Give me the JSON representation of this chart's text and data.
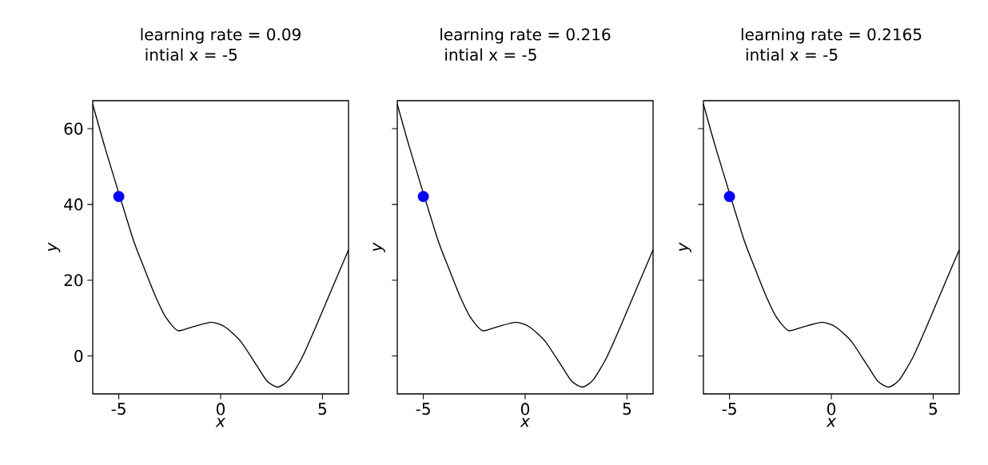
{
  "chart_data": [
    {
      "type": "line",
      "title": "learning rate = 0.09",
      "subtitle": "intial x = -5",
      "xlabel": "x",
      "ylabel": "y",
      "xlim": [
        -6.28,
        6.28
      ],
      "ylim": [
        -10,
        67.4
      ],
      "xticks": [
        -5,
        0,
        5
      ],
      "yticks": [
        0,
        20,
        40,
        60
      ],
      "series": [
        {
          "type": "line",
          "color": "#000000",
          "marker": "none",
          "x": [
            -6.28,
            -5.65,
            -5,
            -4.34,
            -3.74,
            -3.21,
            -2.69,
            -2.1,
            -1.38,
            -0.46,
            0.2,
            0.98,
            1.77,
            2.29,
            2.82,
            3.34,
            4.0,
            4.65,
            5.31,
            6.28
          ],
          "values": [
            66.5,
            54.5,
            null,
            31.5,
            23,
            15.9,
            10.2,
            6.7,
            7.7,
            8.9,
            7.7,
            3.9,
            -2.5,
            -6.7,
            -8.2,
            -6.3,
            -0.4,
            7.4,
            15.8,
            28.0
          ]
        },
        {
          "type": "scatter",
          "color": "#0000ff",
          "marker": "circle",
          "x": [
            -5
          ],
          "values": [
            42.1
          ]
        }
      ]
    },
    {
      "type": "line",
      "title": "learning rate = 0.216",
      "subtitle": "intial x = -5",
      "xlabel": "x",
      "ylabel": "y",
      "xlim": [
        -6.28,
        6.28
      ],
      "ylim": [
        -10,
        67.4
      ],
      "xticks": [
        -5,
        0,
        5
      ],
      "yticks": [
        0,
        20,
        40,
        60
      ],
      "tick_labels": "x",
      "series": [
        {
          "type": "line",
          "color": "#000000",
          "marker": "none",
          "x": [
            -6.28,
            -5.65,
            -5,
            -4.34,
            -3.74,
            -3.21,
            -2.69,
            -2.1,
            -1.38,
            -0.46,
            0.2,
            0.98,
            1.77,
            2.29,
            2.82,
            3.34,
            4.0,
            4.65,
            5.31,
            6.28
          ],
          "values": [
            66.5,
            54.5,
            null,
            31.5,
            23,
            15.9,
            10.2,
            6.7,
            7.7,
            8.9,
            7.7,
            3.9,
            -2.5,
            -6.7,
            -8.2,
            -6.3,
            -0.4,
            7.4,
            15.8,
            28.0
          ]
        },
        {
          "type": "scatter",
          "color": "#0000ff",
          "marker": "circle",
          "x": [
            -5
          ],
          "values": [
            42.1
          ]
        }
      ]
    },
    {
      "type": "line",
      "title": "learning rate = 0.2165",
      "subtitle": "intial x = -5",
      "xlabel": "x",
      "ylabel": "y",
      "xlim": [
        -6.28,
        6.28
      ],
      "ylim": [
        -10,
        67.4
      ],
      "xticks": [
        -5,
        0,
        5
      ],
      "yticks": [
        0,
        20,
        40,
        60
      ],
      "tick_labels": "x",
      "series": [
        {
          "type": "line",
          "color": "#000000",
          "marker": "none",
          "x": [
            -6.28,
            -5.65,
            -5,
            -4.34,
            -3.74,
            -3.21,
            -2.69,
            -2.1,
            -1.38,
            -0.46,
            0.2,
            0.98,
            1.77,
            2.29,
            2.82,
            3.34,
            4.0,
            4.65,
            5.31,
            6.28
          ],
          "values": [
            66.5,
            54.5,
            null,
            31.5,
            23,
            15.9,
            10.2,
            6.7,
            7.7,
            8.9,
            7.7,
            3.9,
            -2.5,
            -6.7,
            -8.2,
            -6.3,
            -0.4,
            7.4,
            15.8,
            28.0
          ]
        },
        {
          "type": "scatter",
          "color": "#0000ff",
          "marker": "circle",
          "x": [
            -5
          ],
          "values": [
            42.1
          ]
        }
      ]
    }
  ]
}
